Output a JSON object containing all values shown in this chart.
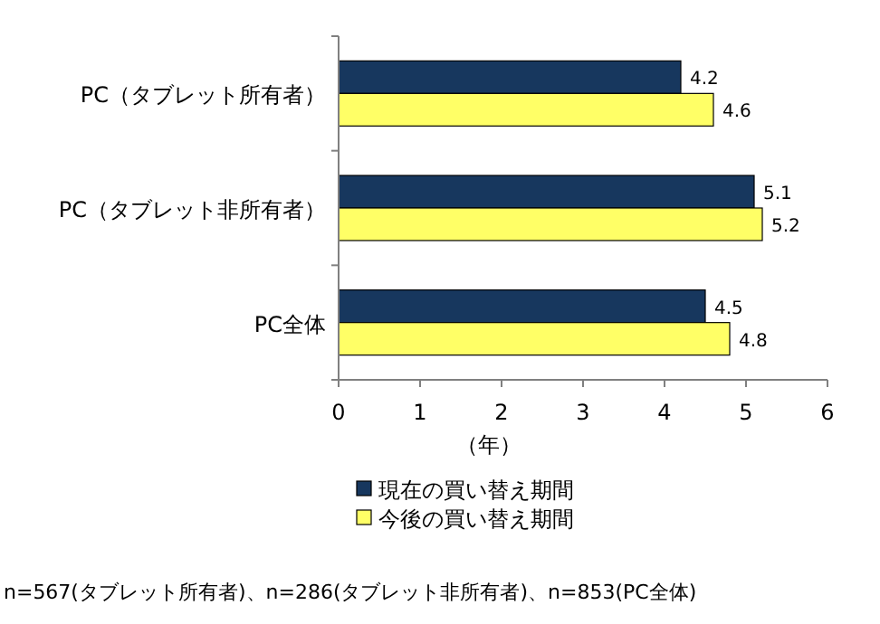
{
  "chart_data": {
    "type": "bar",
    "orientation": "horizontal",
    "categories": [
      "PC（タブレット所有者）",
      "PC（タブレット非所有者）",
      "PC全体"
    ],
    "series": [
      {
        "name": "現在の買い替え期間",
        "color": "#17375e",
        "values": [
          4.2,
          5.1,
          4.5
        ]
      },
      {
        "name": "今後の買い替え期間",
        "color": "#ffff66",
        "values": [
          4.6,
          5.2,
          4.8
        ]
      }
    ],
    "xlim": [
      0,
      6
    ],
    "xticks": [
      0,
      1,
      2,
      3,
      4,
      5,
      6
    ],
    "xlabel": "（年）",
    "data_labels": true,
    "legend": "bottom",
    "annotations": [
      "n=567(タブレット所有者)、n=286(タブレット非所有者)、n=853(PC全体)"
    ]
  }
}
